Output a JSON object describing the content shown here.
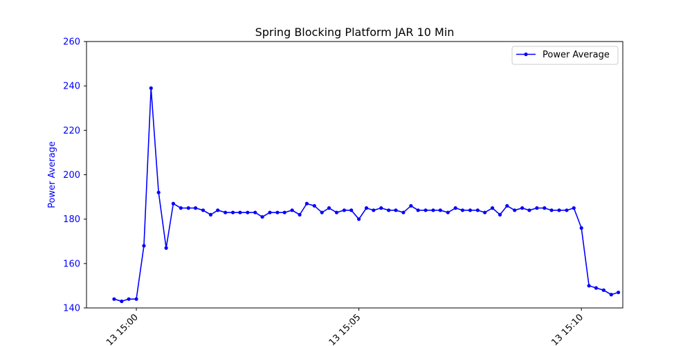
{
  "chart_data": {
    "type": "line",
    "title": "Spring Blocking Platform JAR 10 Min",
    "xlabel": "",
    "ylabel": "Power Average",
    "ylim": [
      140,
      260
    ],
    "yticks": [
      140,
      160,
      180,
      200,
      220,
      240,
      260
    ],
    "xlim_minutes": [
      -1.12,
      10.93
    ],
    "xticks": [
      {
        "value": 0,
        "label": "13 15:00"
      },
      {
        "value": 5,
        "label": "13 15:05"
      },
      {
        "value": 10,
        "label": "13 15:10"
      }
    ],
    "legend": {
      "position": "upper right",
      "entries": [
        "Power Average"
      ]
    },
    "grid": false,
    "colors": {
      "series": "#0000ff",
      "axis_text": "#0000ff"
    },
    "series": [
      {
        "name": "Power Average",
        "marker": "circle",
        "x": [
          -0.5,
          -0.33,
          -0.17,
          0.0,
          0.17,
          0.33,
          0.5,
          0.67,
          0.83,
          1.0,
          1.17,
          1.33,
          1.5,
          1.67,
          1.83,
          2.0,
          2.17,
          2.33,
          2.5,
          2.67,
          2.83,
          3.0,
          3.17,
          3.33,
          3.5,
          3.67,
          3.83,
          4.0,
          4.17,
          4.33,
          4.5,
          4.67,
          4.83,
          5.0,
          5.17,
          5.33,
          5.5,
          5.67,
          5.83,
          6.0,
          6.17,
          6.33,
          6.5,
          6.67,
          6.83,
          7.0,
          7.17,
          7.33,
          7.5,
          7.67,
          7.83,
          8.0,
          8.17,
          8.33,
          8.5,
          8.67,
          8.83,
          9.0,
          9.17,
          9.33,
          9.5,
          9.67,
          9.83,
          10.0,
          10.17,
          10.33,
          10.5,
          10.67,
          10.83
        ],
        "values": [
          144,
          143,
          144,
          144,
          168,
          239,
          192,
          167,
          187,
          185,
          185,
          185,
          184,
          182,
          184,
          183,
          183,
          183,
          183,
          183,
          181,
          183,
          183,
          183,
          184,
          182,
          187,
          186,
          183,
          185,
          183,
          184,
          184,
          180,
          185,
          184,
          185,
          184,
          184,
          183,
          186,
          184,
          184,
          184,
          184,
          183,
          185,
          184,
          184,
          184,
          183,
          185,
          182,
          186,
          184,
          185,
          184,
          185,
          185,
          184,
          184,
          184,
          185,
          176,
          150,
          149,
          148,
          146,
          147
        ]
      }
    ]
  }
}
